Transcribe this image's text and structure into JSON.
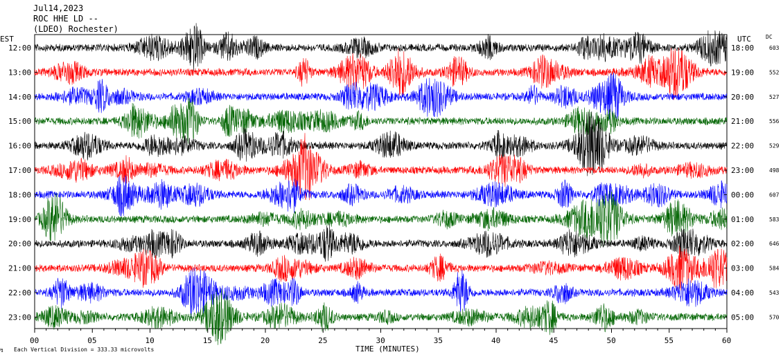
{
  "header": {
    "date": "Jul14,2023",
    "station": "ROC HHE LD --",
    "location": "(LDEO) Rochester)"
  },
  "left_axis_label": "EST",
  "right_axis_label": "UTC",
  "dc_label": "DC",
  "footer_note": "Each Vertical Division =  333.33 microvolts",
  "chart_data": {
    "type": "line",
    "title": "",
    "xlabel": "TIME (MINUTES)",
    "xlim": [
      0,
      60
    ],
    "x_ticks": [
      "00",
      "05",
      "10",
      "15",
      "20",
      "25",
      "30",
      "35",
      "40",
      "45",
      "50",
      "55",
      "60"
    ],
    "rows": [
      {
        "est": "12:00",
        "utc": "18:00",
        "dc": "603",
        "color": "#000000"
      },
      {
        "est": "13:00",
        "utc": "19:00",
        "dc": "552",
        "color": "#ff0000"
      },
      {
        "est": "14:00",
        "utc": "20:00",
        "dc": "527",
        "color": "#0000ff"
      },
      {
        "est": "15:00",
        "utc": "21:00",
        "dc": "556",
        "color": "#006400"
      },
      {
        "est": "16:00",
        "utc": "22:00",
        "dc": "529",
        "color": "#000000"
      },
      {
        "est": "17:00",
        "utc": "23:00",
        "dc": "498",
        "color": "#ff0000"
      },
      {
        "est": "18:00",
        "utc": "00:00",
        "dc": "607",
        "color": "#0000ff"
      },
      {
        "est": "19:00",
        "utc": "01:00",
        "dc": "583",
        "color": "#006400"
      },
      {
        "est": "20:00",
        "utc": "02:00",
        "dc": "646",
        "color": "#000000"
      },
      {
        "est": "21:00",
        "utc": "03:00",
        "dc": "584",
        "color": "#ff0000"
      },
      {
        "est": "22:00",
        "utc": "04:00",
        "dc": "543",
        "color": "#0000ff"
      },
      {
        "est": "23:00",
        "utc": "05:00",
        "dc": "570",
        "color": "#006400"
      }
    ]
  }
}
